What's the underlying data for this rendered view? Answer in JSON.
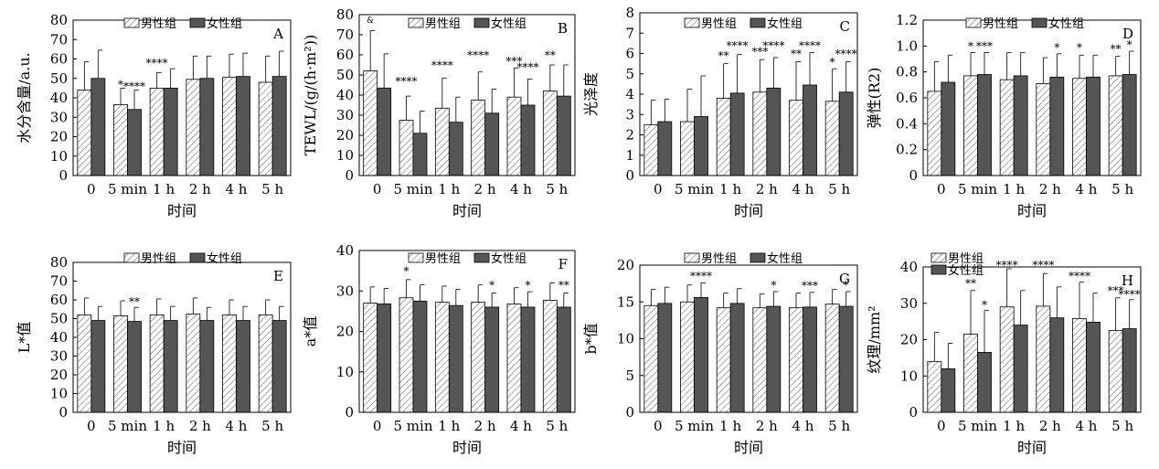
{
  "legend": {
    "male": "男性组",
    "female": "女性组"
  },
  "chart_data": [
    {
      "type": "bar",
      "panel": "A",
      "xlabel": "时间",
      "ylabel": "水分含量/a.u.",
      "ylim": [
        0,
        80
      ],
      "yticks": [
        0,
        10,
        20,
        30,
        40,
        50,
        60,
        70,
        80
      ],
      "categories": [
        "0",
        "5 min",
        "1 h",
        "2 h",
        "4 h",
        "5 h"
      ],
      "series": [
        {
          "name": "男性组",
          "values": [
            44,
            36.5,
            45,
            49.5,
            50.5,
            48
          ],
          "errors": [
            14.5,
            8.5,
            8,
            12,
            12,
            13.5
          ]
        },
        {
          "name": "女性组",
          "values": [
            50,
            34,
            45,
            50,
            51,
            51
          ],
          "errors": [
            14.5,
            10,
            10,
            11.5,
            12,
            13
          ]
        }
      ],
      "annotations": [
        {
          "text": "*",
          "cat": 1,
          "s": 0,
          "y": 45
        },
        {
          "text": "****",
          "cat": 1,
          "s": 1,
          "y": 44
        },
        {
          "text": "****",
          "cat": 2,
          "s": 0,
          "y": 56
        }
      ]
    },
    {
      "type": "bar",
      "panel": "B",
      "xlabel": "时间",
      "ylabel": "TEWL/(g/(h·m²))",
      "ylim": [
        0,
        80
      ],
      "yticks": [
        0,
        10,
        20,
        30,
        40,
        50,
        60,
        70,
        80
      ],
      "categories": [
        "0",
        "5 min",
        "1 h",
        "2 h",
        "4 h",
        "5 h"
      ],
      "series": [
        {
          "name": "男性组",
          "values": [
            52,
            27.5,
            33.5,
            37.5,
            39,
            42
          ],
          "errors": [
            20,
            12,
            15,
            14,
            14.5,
            13
          ]
        },
        {
          "name": "女性组",
          "values": [
            43.5,
            21,
            26.5,
            31,
            35,
            39.5
          ],
          "errors": [
            17,
            11,
            12.5,
            12,
            13,
            15.5
          ]
        }
      ],
      "annotations": [
        {
          "text": "&",
          "cat": 0,
          "s": 0,
          "y": 76
        },
        {
          "text": "****",
          "cat": 1,
          "s": 0,
          "y": 45
        },
        {
          "text": "****",
          "cat": 2,
          "s": 0,
          "y": 53
        },
        {
          "text": "****",
          "cat": 3,
          "s": 0,
          "y": 58
        },
        {
          "text": "***",
          "cat": 4,
          "s": 0,
          "y": 55
        },
        {
          "text": "****",
          "cat": 4,
          "s": 1,
          "y": 52
        },
        {
          "text": "**",
          "cat": 5,
          "s": 0,
          "y": 58
        }
      ]
    },
    {
      "type": "bar",
      "panel": "C",
      "xlabel": "时间",
      "ylabel": "光泽度",
      "ylim": [
        0,
        8
      ],
      "yticks": [
        0,
        1,
        2,
        3,
        4,
        5,
        6,
        7,
        8
      ],
      "categories": [
        "0",
        "5 min",
        "1 h",
        "2 h",
        "4 h",
        "5 h"
      ],
      "series": [
        {
          "name": "男性组",
          "values": [
            2.5,
            2.65,
            3.8,
            4.1,
            3.7,
            3.65
          ],
          "errors": [
            1.2,
            1.6,
            1.7,
            1.6,
            1.9,
            1.6
          ]
        },
        {
          "name": "女性组",
          "values": [
            2.65,
            2.9,
            4.05,
            4.3,
            4.45,
            4.1
          ],
          "errors": [
            1.1,
            2.0,
            1.9,
            1.5,
            1.6,
            1.5
          ]
        }
      ],
      "annotations": [
        {
          "text": "**",
          "cat": 2,
          "s": 0,
          "y": 5.7
        },
        {
          "text": "****",
          "cat": 2,
          "s": 1,
          "y": 6.2
        },
        {
          "text": "***",
          "cat": 3,
          "s": 0,
          "y": 5.9
        },
        {
          "text": "****",
          "cat": 3,
          "s": 1,
          "y": 6.2
        },
        {
          "text": "**",
          "cat": 4,
          "s": 0,
          "y": 5.8
        },
        {
          "text": "****",
          "cat": 4,
          "s": 1,
          "y": 6.2
        },
        {
          "text": "*",
          "cat": 5,
          "s": 0,
          "y": 5.4
        },
        {
          "text": "****",
          "cat": 5,
          "s": 1,
          "y": 5.8
        }
      ]
    },
    {
      "type": "bar",
      "panel": "D",
      "xlabel": "时间",
      "ylabel": "弹性(R2)",
      "ylim": [
        0,
        1.2
      ],
      "yticks": [
        0,
        0.2,
        0.4,
        0.6,
        0.8,
        1.0,
        1.2
      ],
      "categories": [
        "0",
        "5 min",
        "1 h",
        "2 h",
        "4 h",
        "5 h"
      ],
      "series": [
        {
          "name": "男性组",
          "values": [
            0.65,
            0.77,
            0.74,
            0.71,
            0.75,
            0.77
          ],
          "errors": [
            0.23,
            0.18,
            0.21,
            0.2,
            0.18,
            0.15
          ]
        },
        {
          "name": "女性组",
          "values": [
            0.72,
            0.78,
            0.77,
            0.76,
            0.76,
            0.78
          ],
          "errors": [
            0.21,
            0.17,
            0.18,
            0.18,
            0.17,
            0.18
          ]
        }
      ],
      "annotations": [
        {
          "text": "*",
          "cat": 1,
          "s": 0,
          "y": 0.97
        },
        {
          "text": "***",
          "cat": 1,
          "s": 1,
          "y": 0.97
        },
        {
          "text": "*",
          "cat": 3,
          "s": 1,
          "y": 0.96
        },
        {
          "text": "*",
          "cat": 4,
          "s": 0,
          "y": 0.96
        },
        {
          "text": "**",
          "cat": 5,
          "s": 0,
          "y": 0.95
        },
        {
          "text": "*",
          "cat": 5,
          "s": 1,
          "y": 0.98
        }
      ]
    },
    {
      "type": "bar",
      "panel": "E",
      "xlabel": "时间",
      "ylabel": "L*值",
      "ylim": [
        0,
        80
      ],
      "yticks": [
        0,
        10,
        20,
        30,
        40,
        50,
        60,
        70,
        80
      ],
      "categories": [
        "0",
        "5 min",
        "1 h",
        "2 h",
        "4 h",
        "5 h"
      ],
      "series": [
        {
          "name": "男性组",
          "values": [
            52,
            51.5,
            52,
            52.5,
            52,
            52
          ],
          "errors": [
            9,
            8,
            8.5,
            8.5,
            8,
            8
          ]
        },
        {
          "name": "女性组",
          "values": [
            49,
            48.5,
            49,
            49,
            49,
            49
          ],
          "errors": [
            7.5,
            7.5,
            7.5,
            7,
            7.5,
            7.5
          ]
        }
      ],
      "annotations": [
        {
          "text": "**",
          "cat": 1,
          "s": 1,
          "y": 57
        }
      ]
    },
    {
      "type": "bar",
      "panel": "F",
      "xlabel": "时间",
      "ylabel": "a*值",
      "ylim": [
        0,
        40
      ],
      "yticks": [
        0,
        10,
        20,
        30,
        40
      ],
      "categories": [
        "0",
        "5 min",
        "1 h",
        "2 h",
        "4 h",
        "5 h"
      ],
      "series": [
        {
          "name": "男性组",
          "values": [
            27,
            28.3,
            27.2,
            27.2,
            26.8,
            27.7
          ],
          "errors": [
            4,
            4.5,
            4,
            4.3,
            4,
            4.3
          ]
        },
        {
          "name": "女性组",
          "values": [
            26.8,
            27.5,
            26.4,
            26,
            26,
            26
          ],
          "errors": [
            3.8,
            4,
            4,
            3.5,
            3.8,
            3.5
          ]
        }
      ],
      "annotations": [
        {
          "text": "*",
          "cat": 1,
          "s": 0,
          "y": 34
        },
        {
          "text": "*",
          "cat": 3,
          "s": 1,
          "y": 30.5
        },
        {
          "text": "*",
          "cat": 4,
          "s": 1,
          "y": 30.5
        },
        {
          "text": "**",
          "cat": 5,
          "s": 1,
          "y": 30.5
        }
      ]
    },
    {
      "type": "bar",
      "panel": "G",
      "xlabel": "时间",
      "ylabel": "b*值",
      "ylim": [
        0,
        20
      ],
      "yticks": [
        0,
        5,
        10,
        15,
        20
      ],
      "categories": [
        "0",
        "5 min",
        "1 h",
        "2 h",
        "4 h",
        "5 h"
      ],
      "series": [
        {
          "name": "男性组",
          "values": [
            14.5,
            15,
            14.2,
            14.2,
            14.2,
            14.7
          ],
          "errors": [
            2.2,
            2.3,
            2,
            1.9,
            2,
            2
          ]
        },
        {
          "name": "女性组",
          "values": [
            14.8,
            15.6,
            14.8,
            14.4,
            14.3,
            14.4
          ],
          "errors": [
            2.2,
            2,
            2,
            2,
            2,
            2
          ]
        }
      ],
      "annotations": [
        {
          "text": "****",
          "cat": 1,
          "s": 1,
          "y": 18
        },
        {
          "text": "*",
          "cat": 3,
          "s": 1,
          "y": 16.8
        },
        {
          "text": "***",
          "cat": 4,
          "s": 1,
          "y": 16.7
        },
        {
          "text": "*",
          "cat": 5,
          "s": 1,
          "y": 16.8
        }
      ]
    },
    {
      "type": "bar",
      "panel": "H",
      "xlabel": "时间",
      "ylabel": "纹理/mm²",
      "ylim": [
        0,
        40
      ],
      "yticks": [
        0,
        10,
        20,
        30,
        40
      ],
      "categories": [
        "0",
        "5 min",
        "1 h",
        "2 h",
        "4 h",
        "5 h"
      ],
      "series": [
        {
          "name": "男性组",
          "values": [
            14,
            21.5,
            29,
            29.2,
            25.8,
            22.5
          ],
          "errors": [
            8,
            12,
            10.5,
            9,
            10,
            9
          ]
        },
        {
          "name": "女性组",
          "values": [
            12,
            16.5,
            24,
            26,
            24.8,
            23
          ],
          "errors": [
            7,
            11.5,
            9.5,
            8.5,
            8,
            8
          ]
        }
      ],
      "annotations": [
        {
          "text": "**",
          "cat": 1,
          "s": 0,
          "y": 34.5
        },
        {
          "text": "*",
          "cat": 1,
          "s": 1,
          "y": 28.5
        },
        {
          "text": "****",
          "cat": 2,
          "s": 0,
          "y": 39.5
        },
        {
          "text": "****",
          "cat": 3,
          "s": 0,
          "y": 39.5
        },
        {
          "text": "****",
          "cat": 4,
          "s": 0,
          "y": 36.5
        },
        {
          "text": "***",
          "cat": 5,
          "s": 0,
          "y": 32.5
        },
        {
          "text": "****",
          "cat": 5,
          "s": 1,
          "y": 31.5
        }
      ]
    }
  ]
}
